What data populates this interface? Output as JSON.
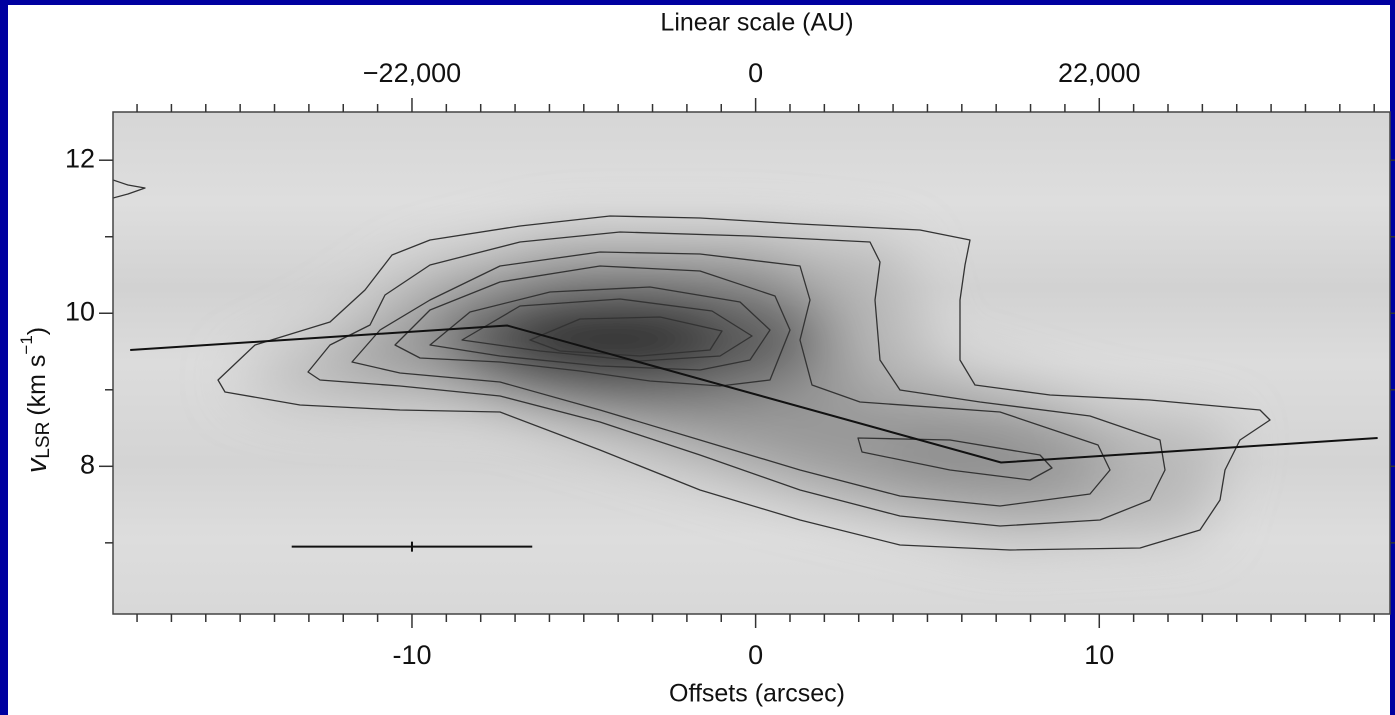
{
  "chart_data": {
    "type": "line",
    "x2label": "Linear scale (AU)",
    "xlabel": "Offsets (arcsec)",
    "ylabel": {
      "symbol": "v",
      "subscript": "LSR",
      "unit": "(km s",
      "superscript": "−1",
      "close": ")"
    },
    "x": [
      -18.2,
      -7.23,
      7.14,
      18.1
    ],
    "values": [
      9.52,
      9.84,
      8.05,
      8.37
    ],
    "color": "#111111",
    "xlim": [
      -18.7,
      18.46
    ],
    "xticks": [
      -10,
      0,
      10
    ],
    "xminorticks": [
      -18,
      -17,
      -16,
      -15,
      -14,
      -13,
      -12,
      -11,
      -9,
      -8,
      -7,
      -6,
      -5,
      -4,
      -3,
      -2,
      -1,
      1,
      2,
      3,
      4,
      5,
      6,
      7,
      8,
      9,
      11,
      12,
      13,
      14,
      15,
      16,
      17,
      18
    ],
    "x2lim": [
      -41140,
      40612
    ],
    "x2ticks": [
      {
        "value": -22000,
        "label": "−22,000"
      },
      0,
      {
        "value": 22000,
        "label": "22,000"
      }
    ],
    "ylim": [
      6.07,
      12.63
    ],
    "yticks": [
      8,
      10,
      12
    ],
    "yminorticks": [
      7,
      9,
      11
    ],
    "scale_bar": {
      "x": [
        -13.5,
        -6.5
      ],
      "y": 6.95,
      "center": -10
    }
  }
}
